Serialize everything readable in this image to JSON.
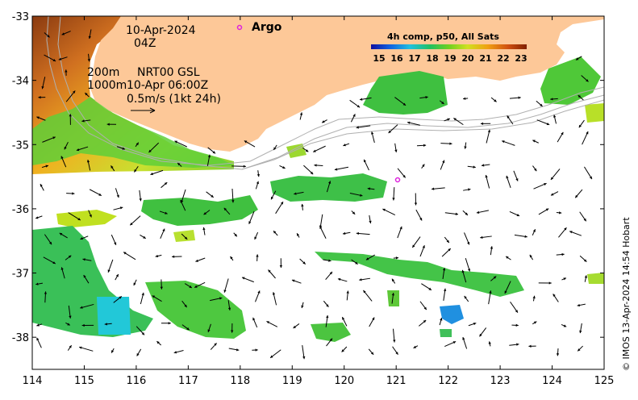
{
  "map": {
    "date_line": "10-Apr-2024",
    "time_line": "04Z",
    "contour_labels": [
      "200m",
      "1000m"
    ],
    "model_line_1": "NRT00 GSL",
    "model_line_2": "10-Apr 06:00Z",
    "scale_label": "0.5m/s (1kt 24h)",
    "argo_label": "Argo",
    "colorbar_title": "4h comp, p50, All Sats",
    "colorbar_ticks": [
      "15",
      "16",
      "17",
      "18",
      "19",
      "20",
      "21",
      "22",
      "23"
    ],
    "credit": "© IMOS 13-Apr-2024 14:54 Hobart",
    "x_ticks": [
      "114",
      "115",
      "116",
      "117",
      "118",
      "119",
      "120",
      "121",
      "122",
      "123",
      "124",
      "125"
    ],
    "y_ticks": [
      "-33",
      "-34",
      "-35",
      "-36",
      "-37",
      "-38"
    ],
    "lon_range": [
      114,
      125
    ],
    "lat_range": [
      -38.5,
      -33
    ],
    "colors": {
      "land": "#fdc898",
      "argo_marker": "#dd22dd",
      "arrows": "#000000"
    }
  }
}
